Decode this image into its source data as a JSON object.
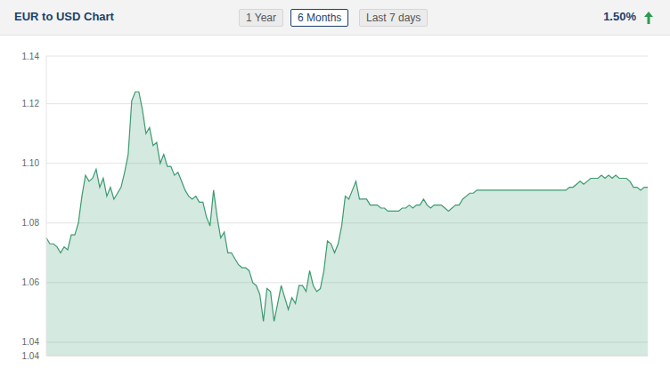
{
  "header": {
    "buttons": [
      "1 Year",
      "6 Months",
      "Last 7 days"
    ],
    "selected": "6 Months",
    "change": "1.50%"
  },
  "chart_data": {
    "type": "area",
    "title": "EUR to USD Chart",
    "color": "#3d9970",
    "grid": true,
    "tick_labels": "y",
    "ylim": [
      1.0355,
      1.136
    ],
    "yticks": [
      {
        "value": 1.0355,
        "label": "1.04"
      },
      1.04,
      1.06,
      1.08,
      {
        "value": 1.1,
        "label": "1.10"
      },
      1.12,
      {
        "value": 1.136,
        "label": "1.14"
      }
    ],
    "categories": [
      null,
      null,
      null,
      null,
      null,
      null,
      null,
      null,
      null,
      null,
      null,
      null,
      null,
      null,
      null,
      null,
      null,
      null,
      null,
      null,
      null,
      null,
      null,
      null,
      null,
      null,
      null,
      null,
      null,
      null,
      null,
      null,
      null,
      null,
      null,
      null,
      null,
      null,
      null,
      null,
      null,
      null,
      null,
      null,
      null,
      null,
      null,
      null,
      null,
      null,
      null,
      null,
      null,
      null,
      null,
      null,
      null,
      null,
      null,
      null,
      null,
      null,
      null,
      null,
      null,
      null,
      null,
      null,
      null,
      null,
      null,
      null,
      null,
      null,
      null,
      null,
      null,
      null,
      null,
      null,
      null,
      null,
      null,
      null,
      null,
      null,
      null,
      null,
      null,
      null,
      null,
      null,
      null,
      null,
      null,
      null,
      null,
      null,
      null,
      null,
      null,
      null,
      null,
      null,
      null,
      null,
      null,
      null,
      null,
      null,
      null,
      null,
      null,
      null,
      null,
      null,
      null,
      null,
      null,
      null,
      null,
      null,
      null,
      null,
      null,
      null,
      null,
      null,
      null,
      null,
      null,
      null,
      null,
      null,
      null,
      null,
      null,
      null,
      null,
      null,
      null,
      null,
      null,
      null,
      null,
      null,
      null,
      null,
      null,
      null,
      null,
      null,
      null,
      null,
      null,
      null,
      null,
      null,
      null,
      null,
      null,
      null,
      null,
      null,
      null,
      null,
      null,
      null,
      null,
      null
    ],
    "values": [
      1.075,
      1.073,
      1.073,
      1.072,
      1.07,
      1.072,
      1.071,
      1.076,
      1.076,
      1.08,
      1.089,
      1.096,
      1.094,
      1.095,
      1.098,
      1.092,
      1.095,
      1.089,
      1.092,
      1.088,
      1.09,
      1.092,
      1.097,
      1.103,
      1.121,
      1.124,
      1.124,
      1.118,
      1.11,
      1.112,
      1.106,
      1.107,
      1.1,
      1.103,
      1.099,
      1.099,
      1.096,
      1.097,
      1.094,
      1.091,
      1.089,
      1.088,
      1.089,
      1.087,
      1.087,
      1.082,
      1.079,
      1.091,
      1.082,
      1.075,
      1.077,
      1.07,
      1.07,
      1.068,
      1.066,
      1.065,
      1.065,
      1.064,
      1.06,
      1.059,
      1.056,
      1.047,
      1.058,
      1.057,
      1.047,
      1.053,
      1.059,
      1.055,
      1.051,
      1.055,
      1.053,
      1.059,
      1.059,
      1.057,
      1.064,
      1.059,
      1.057,
      1.058,
      1.064,
      1.074,
      1.073,
      1.07,
      1.073,
      1.079,
      1.089,
      1.088,
      1.091,
      1.094,
      1.088,
      1.088,
      1.088,
      1.086,
      1.086,
      1.086,
      1.085,
      1.085,
      1.084,
      1.084,
      1.084,
      1.084,
      1.085,
      1.085,
      1.086,
      1.085,
      1.086,
      1.086,
      1.088,
      1.086,
      1.085,
      1.086,
      1.086,
      1.086,
      1.085,
      1.084,
      1.085,
      1.086,
      1.086,
      1.088,
      1.089,
      1.09,
      1.09,
      1.091,
      1.091,
      1.091,
      1.091,
      1.091,
      1.091,
      1.091,
      1.091,
      1.091,
      1.091,
      1.091,
      1.091,
      1.091,
      1.091,
      1.091,
      1.091,
      1.091,
      1.091,
      1.091,
      1.091,
      1.091,
      1.091,
      1.091,
      1.091,
      1.091,
      1.091,
      1.092,
      1.092,
      1.093,
      1.094,
      1.093,
      1.094,
      1.095,
      1.095,
      1.095,
      1.096,
      1.095,
      1.096,
      1.095,
      1.096,
      1.095,
      1.095,
      1.095,
      1.094,
      1.092,
      1.092,
      1.091,
      1.092,
      1.092
    ]
  }
}
